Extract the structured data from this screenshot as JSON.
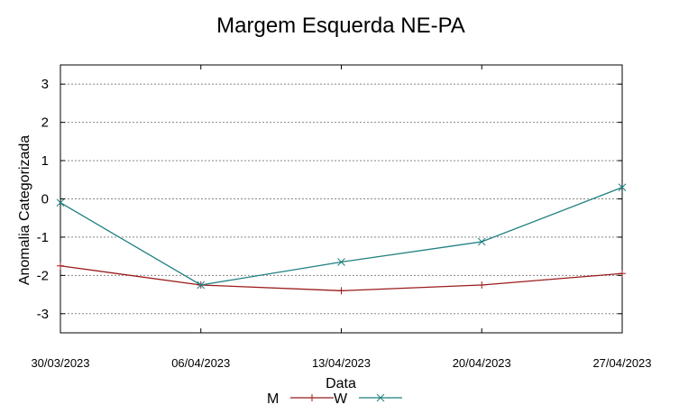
{
  "chart_data": {
    "type": "line",
    "title": "Margem Esquerda NE-PA",
    "xlabel": "Data",
    "ylabel": "Anomalia Categorizada",
    "categories": [
      "30/03/2023",
      "06/04/2023",
      "13/04/2023",
      "20/04/2023",
      "27/04/2023"
    ],
    "ylim": [
      -3.5,
      3.5
    ],
    "yticks": [
      3,
      2,
      1,
      0,
      -1,
      -2,
      -3
    ],
    "grid": true,
    "legend_position": "bottom",
    "series": [
      {
        "name": "M",
        "values": [
          -1.75,
          -2.25,
          -2.4,
          -2.25,
          -1.95
        ],
        "color": "#9b1b1b",
        "marker": "plus"
      },
      {
        "name": "W",
        "values": [
          -0.1,
          -2.25,
          -1.65,
          -1.12,
          0.3
        ],
        "color": "#1f7f7f",
        "marker": "cross"
      }
    ]
  }
}
